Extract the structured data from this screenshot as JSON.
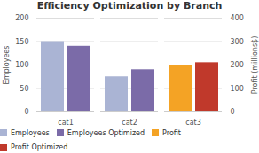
{
  "chart_data": {
    "type": "bar",
    "title": "Efficiency Optimization by Branch",
    "categories": [
      "cat1",
      "cat2",
      "cat3"
    ],
    "ylabel": "Employees",
    "y2label": "Profit (millions$)",
    "ylim": [
      0,
      200
    ],
    "yticks": [
      0,
      50,
      100,
      150,
      200
    ],
    "y2lim": [
      0,
      400
    ],
    "y2ticks": [
      0,
      100,
      200,
      300,
      400
    ],
    "grid": true,
    "legend": "bottom",
    "series": [
      {
        "name": "Employees",
        "color": "#aab4d4",
        "values": [
          150,
          75,
          null
        ]
      },
      {
        "name": "Employees Optimized",
        "color": "#7b6ba8",
        "values": [
          140,
          90,
          null
        ]
      },
      {
        "name": "Profit",
        "color": "#f4a325",
        "values": [
          null,
          null,
          200
        ],
        "axis": "y2"
      },
      {
        "name": "Profit Optimized",
        "color": "#c0392b",
        "values": [
          null,
          null,
          210
        ],
        "axis": "y2"
      }
    ]
  }
}
